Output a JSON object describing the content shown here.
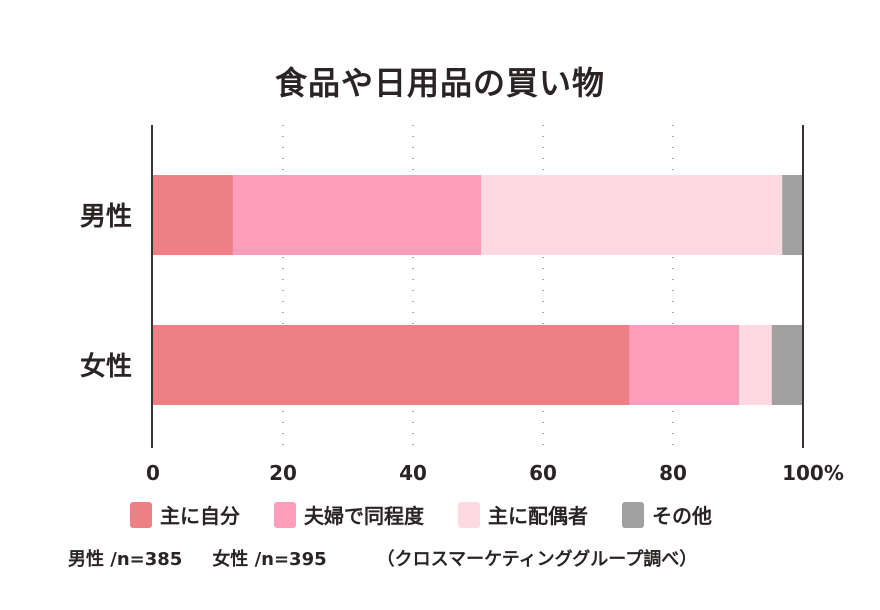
{
  "chart_data": {
    "type": "bar",
    "orientation": "horizontal",
    "stacked": true,
    "title": "食品や日用品の買い物",
    "categories": [
      "男性",
      "女性"
    ],
    "series": [
      {
        "name": "主に自分",
        "color": "#EE8085",
        "values": [
          12.3,
          73.3
        ]
      },
      {
        "name": "夫婦で同程度",
        "color": "#FC9DBC",
        "values": [
          38.2,
          16.9
        ]
      },
      {
        "name": "主に配偶者",
        "color": "#FDDAE2",
        "values": [
          46.3,
          5.0
        ]
      },
      {
        "name": "その他",
        "color": "#A0A0A0",
        "values": [
          3.2,
          4.8
        ]
      }
    ],
    "xlim": [
      0,
      100
    ],
    "xticks": [
      "0",
      "20",
      "40",
      "60",
      "80",
      "100%"
    ],
    "grid": "vertical dotted",
    "legend": "bottom"
  },
  "notes": {
    "sample_male": "男性 /n=385",
    "sample_female": "女性 /n=395",
    "source": "（クロスマーケティンググループ調べ）"
  }
}
